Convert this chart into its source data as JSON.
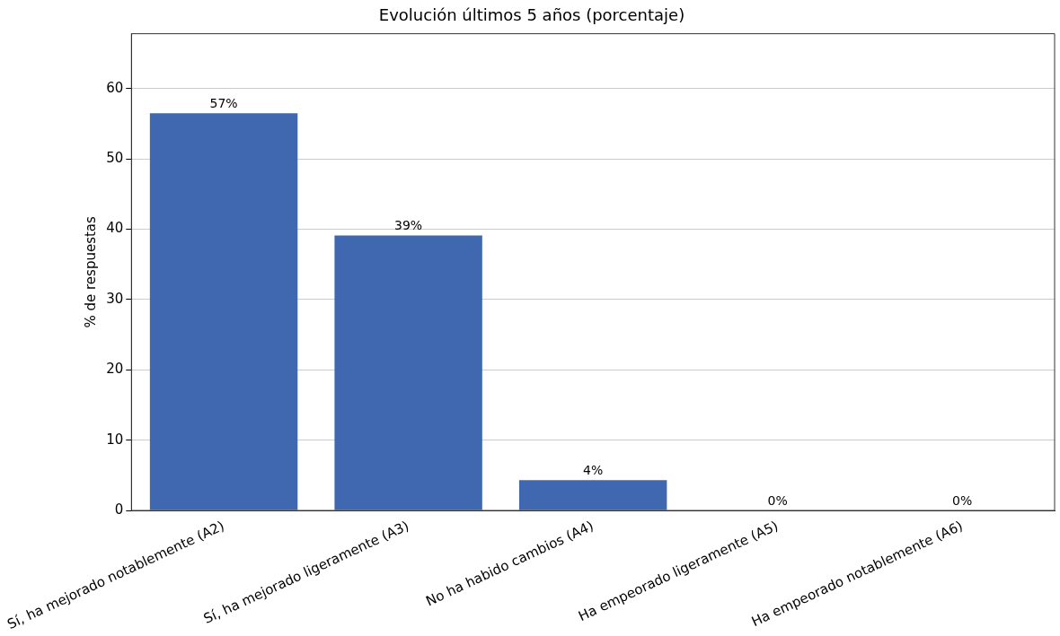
{
  "chart_data": {
    "type": "bar",
    "title": "Evolución últimos 5 años (porcentaje)",
    "ylabel": "% de respuestas",
    "categories": [
      "Sí, ha mejorado notablemente (A2)",
      "Sí, ha mejorado ligeramente (A3)",
      "No ha habido cambios (A4)",
      "Ha empeorado ligeramente (A5)",
      "Ha empeorado notablemente (A6)"
    ],
    "values": [
      56.5,
      39.1,
      4.3,
      0,
      0
    ],
    "value_labels": [
      "57%",
      "39%",
      "4%",
      "0%",
      "0%"
    ],
    "color": "#3f68b0",
    "ylim": [
      0,
      67.8
    ],
    "yticks": [
      0,
      10,
      20,
      30,
      40,
      50,
      60
    ],
    "grid": "y",
    "legend": false
  }
}
